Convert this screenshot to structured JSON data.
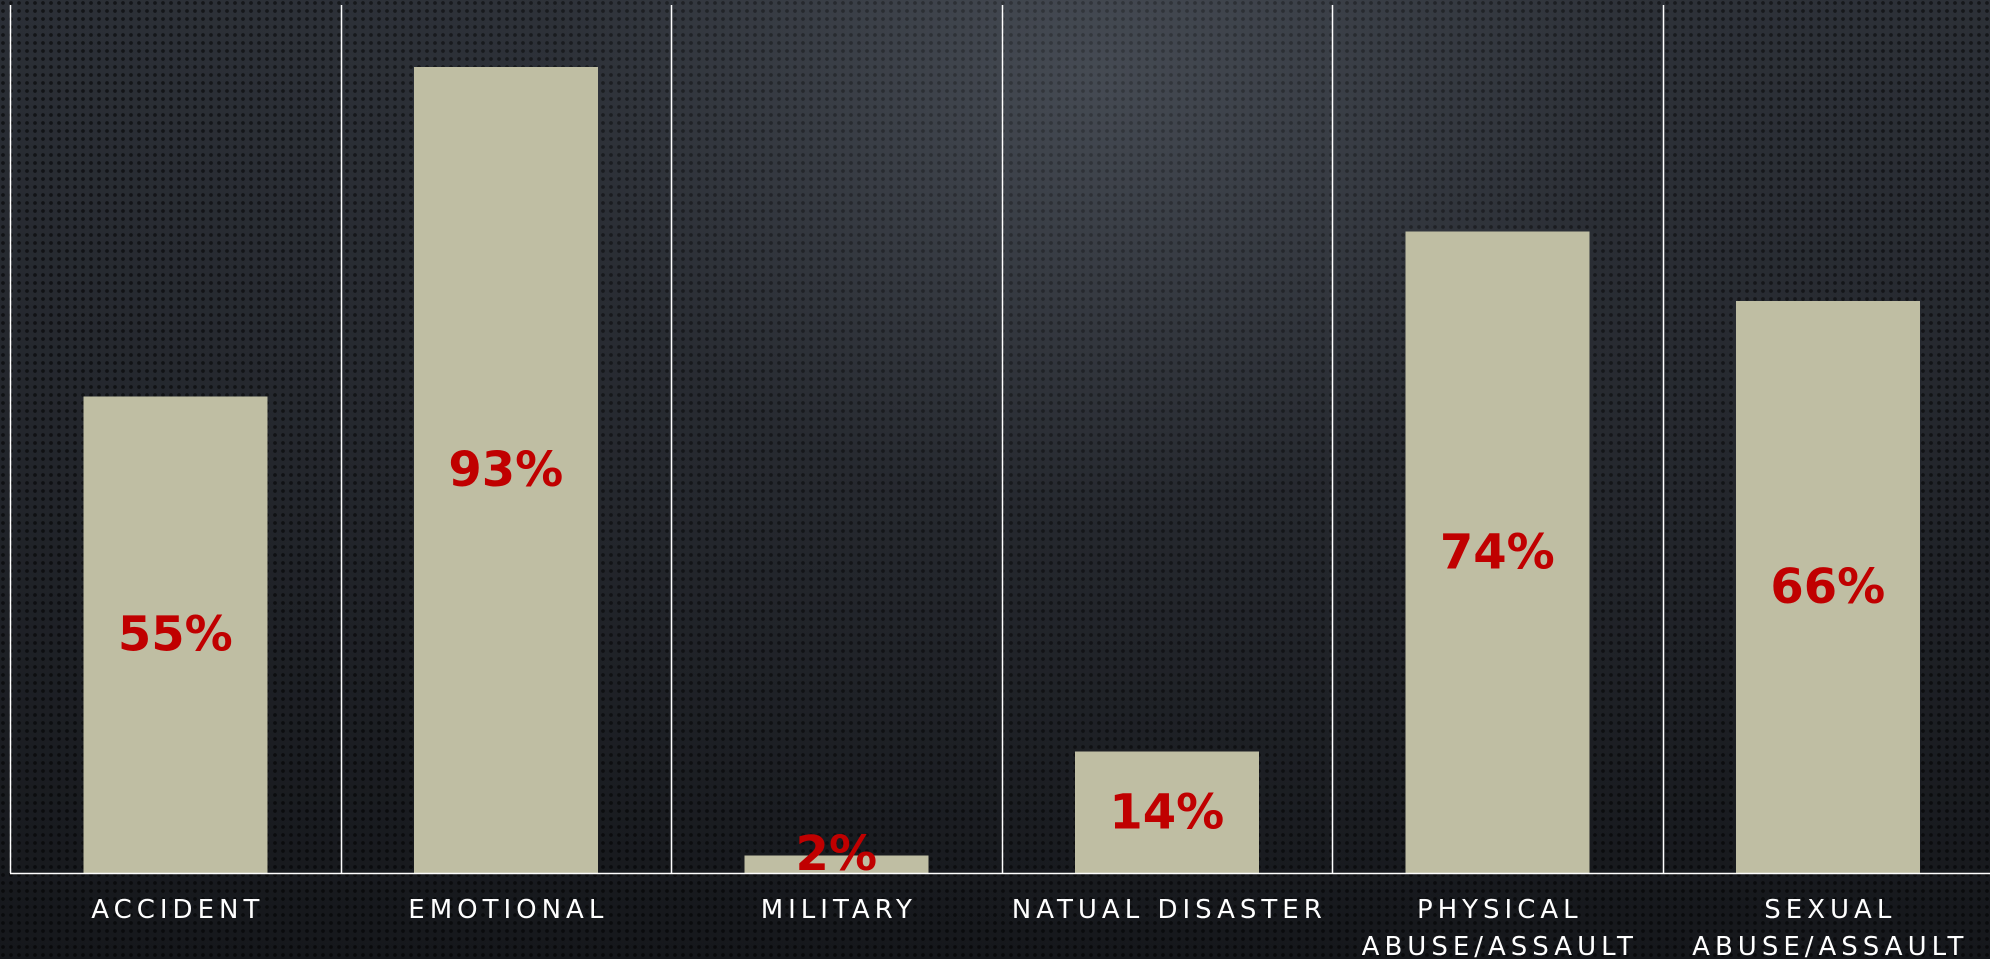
{
  "chart_data": {
    "type": "bar",
    "categories": [
      [
        "ACCIDENT"
      ],
      [
        "EMOTIONAL"
      ],
      [
        "MILITARY"
      ],
      [
        "NATUAL DISASTER"
      ],
      [
        "PHYSICAL",
        "ABUSE/ASSAULT"
      ],
      [
        "SEXUAL",
        "ABUSE/ASSAULT"
      ]
    ],
    "values": [
      55,
      93,
      2,
      14,
      74,
      66
    ],
    "data_labels": [
      "55%",
      "93%",
      "2%",
      "14%",
      "74%",
      "66%"
    ],
    "title": "",
    "xlabel": "",
    "ylabel": "",
    "ylim": [
      0,
      100
    ],
    "grid": false,
    "legend": "none",
    "category_separators": true
  },
  "colors": {
    "bar": "#bfbea3",
    "value_label": "#c00000",
    "category_label": "#ffffff",
    "axis": "#ffffff"
  }
}
